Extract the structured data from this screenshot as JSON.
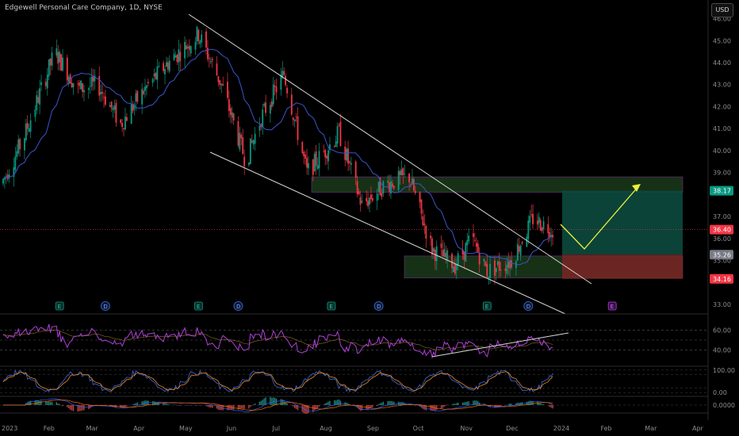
{
  "chart_data": {
    "type": "candlestick",
    "title": "Edgewell Personal Care Company, 1D, NYSE",
    "currency_button": "USD",
    "price_ticks": [
      "46.00",
      "45.00",
      "44.00",
      "43.00",
      "42.00",
      "41.00",
      "40.00",
      "39.00",
      "37.00",
      "36.00",
      "35.00",
      "33.00"
    ],
    "price_range": [
      32.6,
      46.2
    ],
    "x_labels": [
      "2023",
      "Feb",
      "Mar",
      "Apr",
      "May",
      "Jun",
      "Jul",
      "Aug",
      "Sep",
      "Oct",
      "Nov",
      "Dec",
      "2024",
      "Feb",
      "Mar",
      "Apr"
    ],
    "price_badges": [
      {
        "value": "38.17",
        "price": 38.17,
        "color": "#089981"
      },
      {
        "value": "36.40",
        "price": 36.4,
        "color": "#f23645"
      },
      {
        "value": "35.26",
        "price": 35.26,
        "color": "#787b86"
      },
      {
        "value": "34.16",
        "price": 34.16,
        "color": "#f23645"
      }
    ],
    "ohlc_anchors_close": [
      {
        "date": "2023-01-01",
        "close": 38.5
      },
      {
        "date": "2023-01-15",
        "close": 40.5
      },
      {
        "date": "2023-02-05",
        "close": 44.5
      },
      {
        "date": "2023-02-20",
        "close": 42.8
      },
      {
        "date": "2023-03-05",
        "close": 43.0
      },
      {
        "date": "2023-03-20",
        "close": 41.2
      },
      {
        "date": "2023-04-05",
        "close": 42.8
      },
      {
        "date": "2023-04-20",
        "close": 44.0
      },
      {
        "date": "2023-05-10",
        "close": 45.3
      },
      {
        "date": "2023-05-25",
        "close": 43.0
      },
      {
        "date": "2023-06-10",
        "close": 39.5
      },
      {
        "date": "2023-06-20",
        "close": 41.5
      },
      {
        "date": "2023-07-05",
        "close": 43.5
      },
      {
        "date": "2023-07-20",
        "close": 39.0
      },
      {
        "date": "2023-08-01",
        "close": 40.0
      },
      {
        "date": "2023-08-10",
        "close": 40.8
      },
      {
        "date": "2023-08-25",
        "close": 37.5
      },
      {
        "date": "2023-09-10",
        "close": 38.5
      },
      {
        "date": "2023-09-25",
        "close": 38.8
      },
      {
        "date": "2023-10-10",
        "close": 35.5
      },
      {
        "date": "2023-10-25",
        "close": 34.8
      },
      {
        "date": "2023-11-05",
        "close": 36.0
      },
      {
        "date": "2023-11-15",
        "close": 34.5
      },
      {
        "date": "2023-12-01",
        "close": 35.0
      },
      {
        "date": "2023-12-15",
        "close": 36.9
      },
      {
        "date": "2023-12-28",
        "close": 36.4
      }
    ],
    "trade_zones": {
      "resistance_zone": [
        38.1,
        38.8
      ],
      "support_zone": [
        34.2,
        35.2
      ],
      "take_profit": [
        35.26,
        38.17
      ],
      "stop_loss": [
        34.16,
        35.26
      ]
    },
    "indicators": {
      "rsi_ticks": [
        "60.00",
        "40.00"
      ],
      "stoch_ticks": [
        "100.00",
        "0.00"
      ],
      "macd_ticks": [
        "0.0000"
      ]
    },
    "events": [
      {
        "label": "E",
        "date": "2023-02-08"
      },
      {
        "label": "D",
        "date": "2023-03-10"
      },
      {
        "label": "E",
        "date": "2023-05-10"
      },
      {
        "label": "D",
        "date": "2023-06-05"
      },
      {
        "label": "E",
        "date": "2023-08-05"
      },
      {
        "label": "D",
        "date": "2023-09-05"
      },
      {
        "label": "E",
        "date": "2023-11-15"
      },
      {
        "label": "D",
        "date": "2023-12-12"
      },
      {
        "label": "E",
        "date": "2024-02-05"
      }
    ],
    "colors": {
      "up": "#089981",
      "down": "#f23645",
      "ma": "#3b55c8",
      "rsi": "#b040d8",
      "projection": "#e8f03a",
      "trendline": "#d8d8d8"
    }
  }
}
